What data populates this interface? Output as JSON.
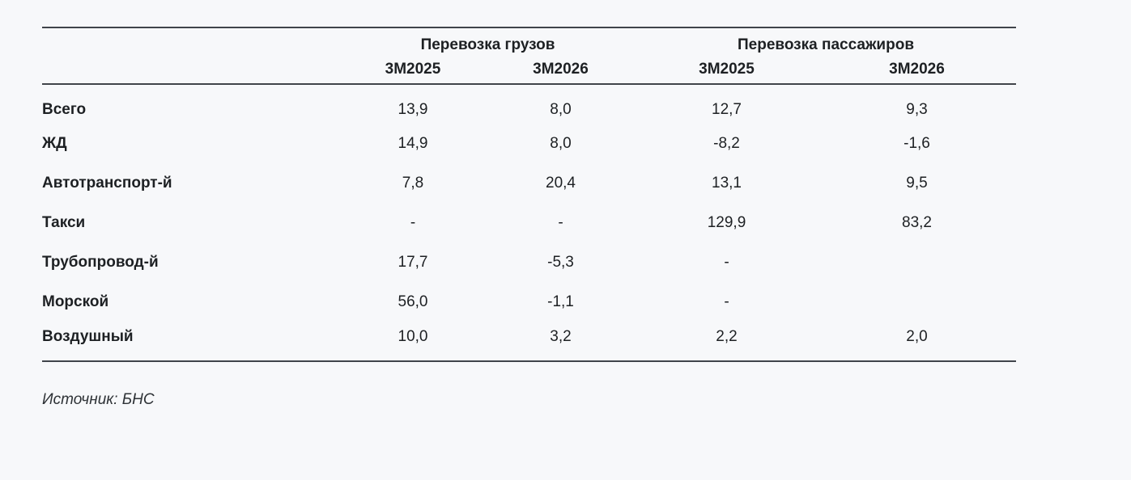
{
  "colors": {
    "background": "#f7f8fa",
    "text": "#1d2023",
    "rule_line": "#40444a"
  },
  "table": {
    "groups": [
      {
        "label": "Перевозка грузов"
      },
      {
        "label": "Перевозка пассажиров"
      }
    ],
    "sub_headers": [
      "3М2025",
      "3М2026",
      "3М2025",
      "3М2026"
    ],
    "rows": [
      {
        "label": "Всего",
        "values": [
          "13,9",
          "8,0",
          "12,7",
          "9,3"
        ]
      },
      {
        "label": "ЖД",
        "values": [
          "14,9",
          "8,0",
          "-8,2",
          "-1,6"
        ]
      },
      {
        "label": "Автотранспорт-й",
        "values": [
          "7,8",
          "20,4",
          "13,1",
          "9,5"
        ]
      },
      {
        "label": "Такси",
        "values": [
          "-",
          "-",
          "129,9",
          "83,2"
        ]
      },
      {
        "label": "Трубопровод-й",
        "values": [
          "17,7",
          "-5,3",
          "-",
          ""
        ]
      },
      {
        "label": "Морской",
        "values": [
          "56,0",
          "-1,1",
          "-",
          ""
        ]
      },
      {
        "label": "Воздушный",
        "values": [
          "10,0",
          "3,2",
          "2,2",
          "2,0"
        ]
      }
    ],
    "source": "Источник: БНС"
  }
}
